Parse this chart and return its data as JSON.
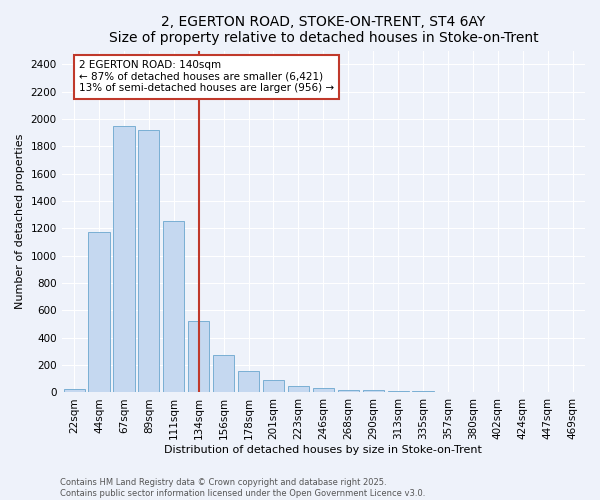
{
  "title1": "2, EGERTON ROAD, STOKE-ON-TRENT, ST4 6AY",
  "title2": "Size of property relative to detached houses in Stoke-on-Trent",
  "xlabel": "Distribution of detached houses by size in Stoke-on-Trent",
  "ylabel": "Number of detached properties",
  "categories": [
    "22sqm",
    "44sqm",
    "67sqm",
    "89sqm",
    "111sqm",
    "134sqm",
    "156sqm",
    "178sqm",
    "201sqm",
    "223sqm",
    "246sqm",
    "268sqm",
    "290sqm",
    "313sqm",
    "335sqm",
    "357sqm",
    "380sqm",
    "402sqm",
    "424sqm",
    "447sqm",
    "469sqm"
  ],
  "values": [
    25,
    1175,
    1950,
    1920,
    1250,
    520,
    275,
    155,
    90,
    45,
    35,
    18,
    18,
    8,
    8,
    5,
    5,
    5,
    2,
    2,
    2
  ],
  "bar_color": "#c5d8f0",
  "bar_edge_color": "#7aafd4",
  "vline_color": "#c0392b",
  "annotation_title": "2 EGERTON ROAD: 140sqm",
  "annotation_line1": "← 87% of detached houses are smaller (6,421)",
  "annotation_line2": "13% of semi-detached houses are larger (956) →",
  "annotation_box_color": "#ffffff",
  "annotation_box_edge": "#c0392b",
  "ylim": [
    0,
    2500
  ],
  "yticks": [
    0,
    200,
    400,
    600,
    800,
    1000,
    1200,
    1400,
    1600,
    1800,
    2000,
    2200,
    2400
  ],
  "background_color": "#eef2fa",
  "footer1": "Contains HM Land Registry data © Crown copyright and database right 2025.",
  "footer2": "Contains public sector information licensed under the Open Government Licence v3.0.",
  "title_fontsize": 10,
  "subtitle_fontsize": 9,
  "axis_label_fontsize": 8,
  "tick_fontsize": 7.5,
  "annotation_fontsize": 7.5,
  "footer_fontsize": 6
}
